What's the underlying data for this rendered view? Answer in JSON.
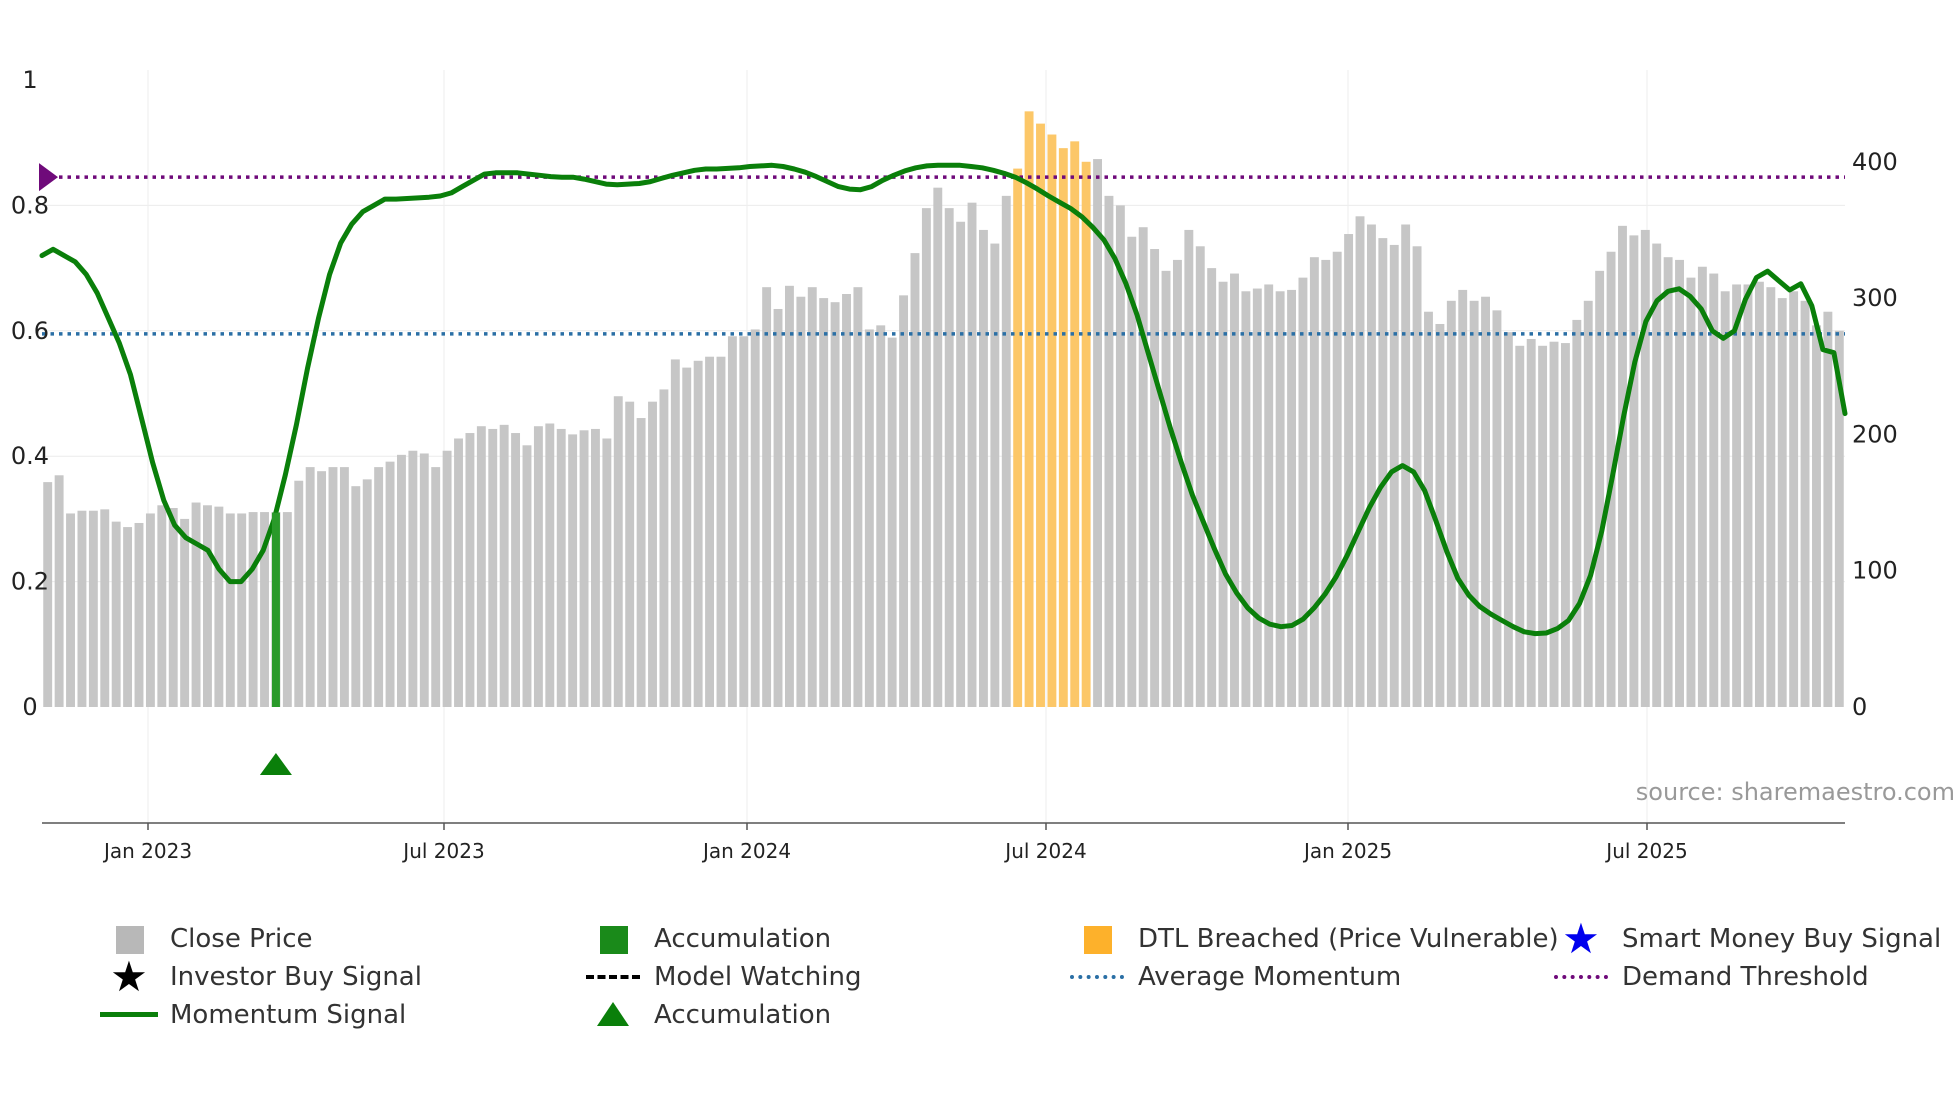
{
  "chart_data": {
    "type": "bar",
    "title": "",
    "source_text": "source: sharemaestro.com",
    "x_ticks": [
      "Jan 2023",
      "Jul 2023",
      "Jan 2024",
      "Jul 2024",
      "Jan 2025",
      "Jul 2025"
    ],
    "y_left_ticks": [
      "0",
      "0.2",
      "0.4",
      "0.6",
      "0.8",
      "1"
    ],
    "y_right_ticks": [
      "0",
      "100",
      "200",
      "300",
      "400"
    ],
    "ylim_left": [
      0,
      1
    ],
    "ylim_right": [
      0,
      460
    ],
    "average_momentum": 0.595,
    "demand_threshold": 0.845,
    "close_price": [
      165,
      170,
      142,
      144,
      144,
      145,
      136,
      132,
      135,
      142,
      148,
      146,
      138,
      150,
      148,
      147,
      142,
      142,
      143,
      143,
      143,
      143,
      166,
      176,
      173,
      176,
      176,
      162,
      167,
      176,
      180,
      185,
      188,
      186,
      176,
      188,
      197,
      201,
      206,
      204,
      207,
      201,
      192,
      206,
      208,
      204,
      200,
      203,
      204,
      197,
      228,
      224,
      212,
      224,
      233,
      255,
      249,
      254,
      257,
      257,
      272,
      272,
      277,
      308,
      292,
      309,
      301,
      308,
      300,
      297,
      303,
      308,
      277,
      280,
      271,
      302,
      333,
      366,
      381,
      366,
      356,
      370,
      350,
      340,
      375,
      395,
      437,
      428,
      420,
      410,
      415,
      400,
      402,
      375,
      368,
      345,
      352,
      336,
      320,
      328,
      350,
      338,
      322,
      312,
      318,
      305,
      307,
      310,
      305,
      306,
      315,
      330,
      328,
      334,
      347,
      360,
      354,
      344,
      339,
      354,
      338,
      290,
      281,
      298,
      306,
      298,
      301,
      291,
      275,
      265,
      270,
      265,
      268,
      267,
      284,
      298,
      320,
      334,
      353,
      346,
      350,
      340,
      330,
      328,
      315,
      323,
      318,
      305,
      310,
      310,
      312,
      308,
      300,
      305,
      298,
      280,
      290,
      276
    ],
    "close_price_segments": [
      {
        "label": "DTL Breached (Price Vulnerable)",
        "from_index": 85,
        "to_index": 91,
        "color": "#fcc768"
      }
    ],
    "momentum_signal": [
      [
        0,
        0.72
      ],
      [
        3,
        0.73
      ],
      [
        6,
        0.72
      ],
      [
        9,
        0.71
      ],
      [
        12,
        0.69
      ],
      [
        15,
        0.66
      ],
      [
        18,
        0.62
      ],
      [
        21,
        0.58
      ],
      [
        24,
        0.53
      ],
      [
        27,
        0.46
      ],
      [
        30,
        0.39
      ],
      [
        33,
        0.33
      ],
      [
        36,
        0.29
      ],
      [
        39,
        0.27
      ],
      [
        42,
        0.26
      ],
      [
        45,
        0.25
      ],
      [
        48,
        0.22
      ],
      [
        51,
        0.2
      ],
      [
        54,
        0.2
      ],
      [
        57,
        0.22
      ],
      [
        60,
        0.25
      ],
      [
        63,
        0.3
      ],
      [
        66,
        0.37
      ],
      [
        69,
        0.45
      ],
      [
        72,
        0.54
      ],
      [
        75,
        0.62
      ],
      [
        78,
        0.69
      ],
      [
        81,
        0.74
      ],
      [
        84,
        0.77
      ],
      [
        87,
        0.79
      ],
      [
        90,
        0.8
      ],
      [
        93,
        0.81
      ],
      [
        96,
        0.81
      ],
      [
        99,
        0.811
      ],
      [
        102,
        0.812
      ],
      [
        105,
        0.813
      ],
      [
        108,
        0.815
      ],
      [
        111,
        0.82
      ],
      [
        114,
        0.83
      ],
      [
        117,
        0.84
      ],
      [
        120,
        0.85
      ],
      [
        123,
        0.852
      ],
      [
        126,
        0.852
      ],
      [
        129,
        0.852
      ],
      [
        132,
        0.85
      ],
      [
        135,
        0.848
      ],
      [
        138,
        0.846
      ],
      [
        141,
        0.845
      ],
      [
        144,
        0.845
      ],
      [
        147,
        0.842
      ],
      [
        150,
        0.838
      ],
      [
        153,
        0.834
      ],
      [
        156,
        0.833
      ],
      [
        159,
        0.834
      ],
      [
        162,
        0.835
      ],
      [
        165,
        0.838
      ],
      [
        168,
        0.843
      ],
      [
        171,
        0.848
      ],
      [
        174,
        0.852
      ],
      [
        177,
        0.856
      ],
      [
        180,
        0.858
      ],
      [
        183,
        0.858
      ],
      [
        186,
        0.859
      ],
      [
        189,
        0.86
      ],
      [
        192,
        0.862
      ],
      [
        195,
        0.863
      ],
      [
        198,
        0.864
      ],
      [
        201,
        0.862
      ],
      [
        204,
        0.858
      ],
      [
        207,
        0.853
      ],
      [
        210,
        0.846
      ],
      [
        213,
        0.838
      ],
      [
        216,
        0.83
      ],
      [
        219,
        0.826
      ],
      [
        222,
        0.825
      ],
      [
        225,
        0.83
      ],
      [
        228,
        0.84
      ],
      [
        231,
        0.848
      ],
      [
        234,
        0.855
      ],
      [
        237,
        0.86
      ],
      [
        240,
        0.863
      ],
      [
        243,
        0.864
      ],
      [
        246,
        0.864
      ],
      [
        249,
        0.864
      ],
      [
        252,
        0.862
      ],
      [
        255,
        0.86
      ],
      [
        258,
        0.856
      ],
      [
        261,
        0.851
      ],
      [
        264,
        0.845
      ],
      [
        267,
        0.836
      ],
      [
        270,
        0.826
      ],
      [
        273,
        0.815
      ],
      [
        276,
        0.805
      ],
      [
        279,
        0.795
      ],
      [
        282,
        0.782
      ],
      [
        285,
        0.765
      ],
      [
        288,
        0.745
      ],
      [
        291,
        0.715
      ],
      [
        294,
        0.675
      ],
      [
        297,
        0.625
      ],
      [
        300,
        0.565
      ],
      [
        303,
        0.505
      ],
      [
        306,
        0.445
      ],
      [
        309,
        0.39
      ],
      [
        312,
        0.338
      ],
      [
        315,
        0.295
      ],
      [
        318,
        0.252
      ],
      [
        321,
        0.212
      ],
      [
        324,
        0.182
      ],
      [
        327,
        0.158
      ],
      [
        330,
        0.142
      ],
      [
        333,
        0.132
      ],
      [
        336,
        0.128
      ],
      [
        339,
        0.13
      ],
      [
        342,
        0.14
      ],
      [
        345,
        0.158
      ],
      [
        348,
        0.18
      ],
      [
        351,
        0.208
      ],
      [
        354,
        0.242
      ],
      [
        357,
        0.28
      ],
      [
        360,
        0.318
      ],
      [
        363,
        0.35
      ],
      [
        366,
        0.375
      ],
      [
        369,
        0.385
      ],
      [
        372,
        0.375
      ],
      [
        375,
        0.345
      ],
      [
        378,
        0.298
      ],
      [
        381,
        0.248
      ],
      [
        384,
        0.205
      ],
      [
        387,
        0.178
      ],
      [
        390,
        0.16
      ],
      [
        393,
        0.148
      ],
      [
        396,
        0.138
      ],
      [
        399,
        0.128
      ],
      [
        402,
        0.12
      ],
      [
        405,
        0.117
      ],
      [
        408,
        0.118
      ],
      [
        411,
        0.125
      ],
      [
        414,
        0.138
      ],
      [
        417,
        0.165
      ],
      [
        420,
        0.21
      ],
      [
        423,
        0.28
      ],
      [
        426,
        0.37
      ],
      [
        429,
        0.465
      ],
      [
        432,
        0.55
      ],
      [
        435,
        0.615
      ],
      [
        438,
        0.648
      ],
      [
        441,
        0.663
      ],
      [
        444,
        0.667
      ],
      [
        447,
        0.655
      ],
      [
        450,
        0.635
      ],
      [
        453,
        0.6
      ],
      [
        456,
        0.588
      ],
      [
        459,
        0.6
      ],
      [
        462,
        0.65
      ],
      [
        465,
        0.685
      ],
      [
        468,
        0.695
      ],
      [
        471,
        0.68
      ],
      [
        474,
        0.665
      ],
      [
        477,
        0.675
      ],
      [
        480,
        0.64
      ],
      [
        483,
        0.57
      ],
      [
        486,
        0.565
      ],
      [
        489,
        0.468
      ]
    ],
    "momentum_x_max": 489,
    "accumulation_bar": {
      "index": 20,
      "value": 0.31
    },
    "accumulation_marker": {
      "index": 20
    },
    "legend": [
      {
        "label": "Close Price",
        "key": "gray-square",
        "color": "#b8b8b8"
      },
      {
        "label": "Accumulation",
        "key": "green-square",
        "color": "#1a8a1a"
      },
      {
        "label": "DTL Breached (Price Vulnerable)",
        "key": "orange-square",
        "color": "#fdb12b"
      },
      {
        "label": "Smart Money Buy Signal",
        "key": "blue-star",
        "color": "#0000ee"
      },
      {
        "label": "Investor Buy Signal",
        "key": "black-star",
        "color": "#000000"
      },
      {
        "label": "Model Watching",
        "key": "black-dash",
        "color": "#000000"
      },
      {
        "label": "Average Momentum",
        "key": "blue-dot",
        "color": "#2a6fa5"
      },
      {
        "label": "Demand Threshold",
        "key": "purple-dot",
        "color": "#6f0a7a"
      },
      {
        "label": "Momentum Signal",
        "key": "green-line",
        "color": "#0a7f0a"
      },
      {
        "label": "Accumulation",
        "key": "green-triangle",
        "color": "#0a7f0a"
      }
    ],
    "colors": {
      "bar": "#c6c6c6",
      "momentum": "#0a7f0a",
      "avg_line": "#2a6fa5",
      "demand_line": "#6f0a7a",
      "accum": "#2a9a2a",
      "source": "#999999"
    }
  }
}
